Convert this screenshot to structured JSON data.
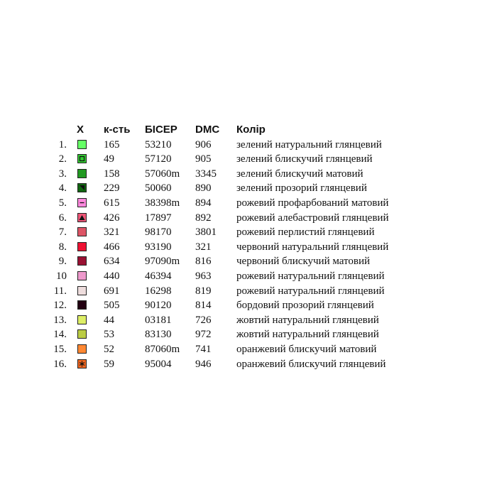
{
  "header": {
    "symbol": "X",
    "quantity": "к-сть",
    "bead": "БІСЕР",
    "dmc": "DMC",
    "color": "Колір"
  },
  "rows": [
    {
      "num": "1.",
      "qty": "165",
      "bead": "53210",
      "dmc": "906",
      "color": "зелений натуральний глянцевий",
      "swatch": "#66ff66",
      "icon": "none"
    },
    {
      "num": "2.",
      "qty": "49",
      "bead": "57120",
      "dmc": "905",
      "color": "зелений блискучий глянцевий",
      "swatch": "#33cc33",
      "icon": "inner-square"
    },
    {
      "num": "3.",
      "qty": "158",
      "bead": "57060m",
      "dmc": "3345",
      "color": "зелений блискучий матовий",
      "swatch": "#229922",
      "icon": "none"
    },
    {
      "num": "4.",
      "qty": "229",
      "bead": "50060",
      "dmc": "890",
      "color": "зелений прозорий глянцевий",
      "swatch": "#116611",
      "icon": "corner-triangle"
    },
    {
      "num": "5.",
      "qty": "615",
      "bead": "38398m",
      "dmc": "894",
      "color": "рожевий профарбований матовий",
      "swatch": "#ff88dd",
      "icon": "minus"
    },
    {
      "num": "6.",
      "qty": "426",
      "bead": "17897",
      "dmc": "892",
      "color": "рожевий алебастровий глянцевий",
      "swatch": "#ee5577",
      "icon": "up-triangle"
    },
    {
      "num": "7.",
      "qty": "321",
      "bead": "98170",
      "dmc": "3801",
      "color": "рожевий перлистий глянцевий",
      "swatch": "#dd5566",
      "icon": "none"
    },
    {
      "num": "8.",
      "qty": "466",
      "bead": "93190",
      "dmc": "321",
      "color": "червоний натуральний глянцевий",
      "swatch": "#ee1133",
      "icon": "none"
    },
    {
      "num": "9.",
      "qty": "634",
      "bead": "97090m",
      "dmc": "816",
      "color": "червоний блискучий матовий",
      "swatch": "#991133",
      "icon": "none"
    },
    {
      "num": "10",
      "qty": "440",
      "bead": "46394",
      "dmc": "963",
      "color": "рожевий натуральний глянцевий",
      "swatch": "#ee99cc",
      "icon": "none"
    },
    {
      "num": "11.",
      "qty": "691",
      "bead": "16298",
      "dmc": "819",
      "color": "рожевий натуральний глянцевий",
      "swatch": "#eedddd",
      "icon": "none"
    },
    {
      "num": "12.",
      "qty": "505",
      "bead": "90120",
      "dmc": "814",
      "color": "бордовий прозорий глянцевий",
      "swatch": "#220011",
      "icon": "none"
    },
    {
      "num": "13.",
      "qty": "44",
      "bead": "03181",
      "dmc": "726",
      "color": "жовтий натуральний глянцевий",
      "swatch": "#ddee66",
      "icon": "none"
    },
    {
      "num": "14.",
      "qty": "53",
      "bead": "83130",
      "dmc": "972",
      "color": "жовтий натуральний глянцевий",
      "swatch": "#bbcc44",
      "icon": "none"
    },
    {
      "num": "15.",
      "qty": "52",
      "bead": "87060m",
      "dmc": "741",
      "color": "оранжевий блискучий матовий",
      "swatch": "#ff8833",
      "icon": "none"
    },
    {
      "num": "16.",
      "qty": "59",
      "bead": "95004",
      "dmc": "946",
      "color": "оранжевий блискучий глянцевий",
      "swatch": "#ee6622",
      "icon": "asterisk"
    }
  ]
}
